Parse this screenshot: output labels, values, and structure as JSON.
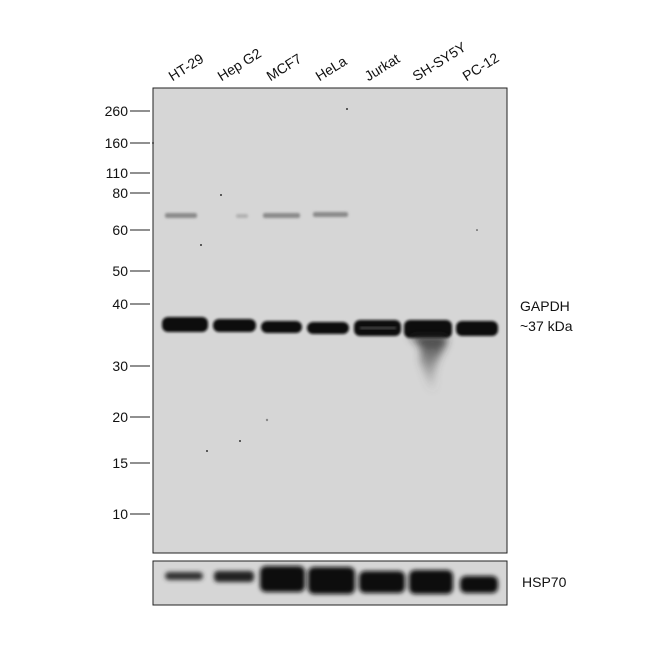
{
  "lanes": [
    "HT-29",
    "Hep G2",
    "MCF7",
    "HeLa",
    "Jurkat",
    "SH-SY5Y",
    "PC-12"
  ],
  "markers": [
    "260",
    "160",
    "110",
    "80",
    "60",
    "50",
    "40",
    "30",
    "20",
    "15",
    "10"
  ],
  "band_annotation": {
    "protein": "GAPDH",
    "size": "~37 kDa"
  },
  "loading_control": "HSP70"
}
